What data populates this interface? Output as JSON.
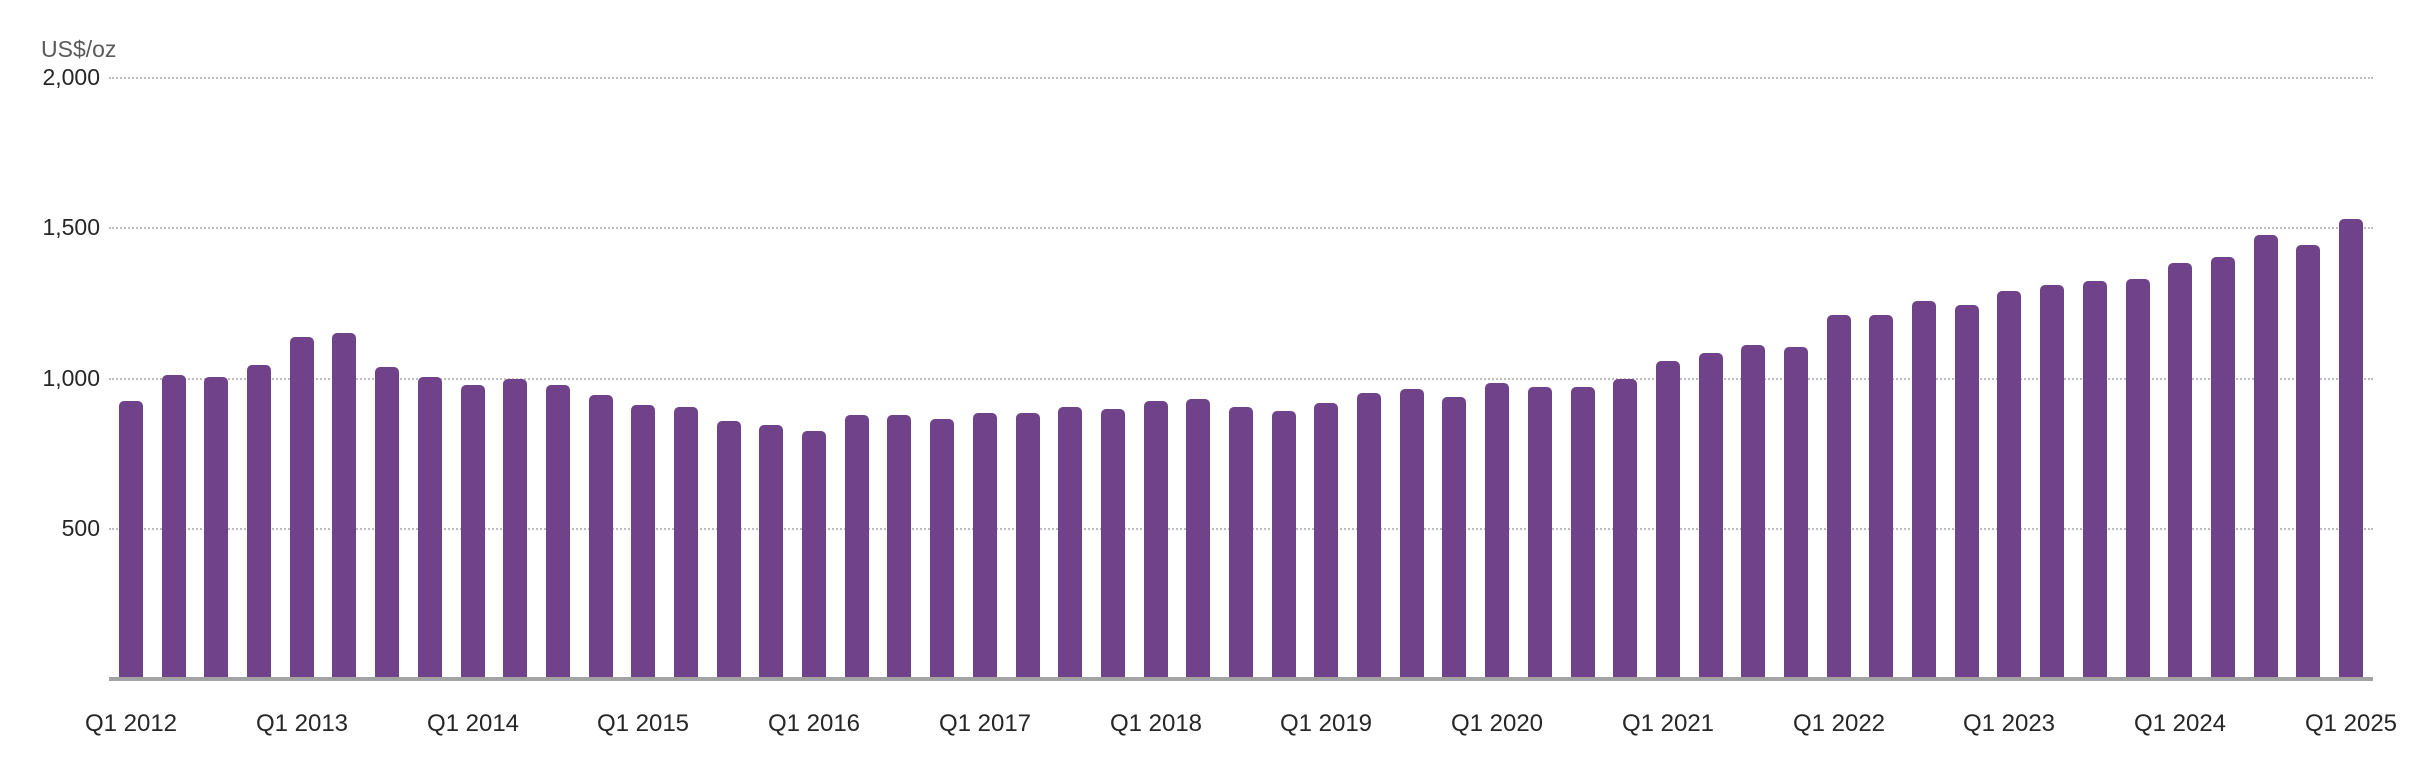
{
  "chart_data": {
    "type": "bar",
    "title": "",
    "xlabel": "",
    "ylabel": "US$/oz",
    "ylim": [
      0,
      2000
    ],
    "yticks": [
      500,
      1000,
      1500,
      2000
    ],
    "ytick_labels": [
      "500",
      "1,000",
      "1,500",
      "2,000"
    ],
    "grid": true,
    "legend": null,
    "bar_color": "#6f4289",
    "categories": [
      "Q1 2012",
      "Q2 2012",
      "Q3 2012",
      "Q4 2012",
      "Q1 2013",
      "Q2 2013",
      "Q3 2013",
      "Q4 2013",
      "Q1 2014",
      "Q2 2014",
      "Q3 2014",
      "Q4 2014",
      "Q1 2015",
      "Q2 2015",
      "Q3 2015",
      "Q4 2015",
      "Q1 2016",
      "Q2 2016",
      "Q3 2016",
      "Q4 2016",
      "Q1 2017",
      "Q2 2017",
      "Q3 2017",
      "Q4 2017",
      "Q1 2018",
      "Q2 2018",
      "Q3 2018",
      "Q4 2018",
      "Q1 2019",
      "Q2 2019",
      "Q3 2019",
      "Q4 2019",
      "Q1 2020",
      "Q2 2020",
      "Q3 2020",
      "Q4 2020",
      "Q1 2021",
      "Q2 2021",
      "Q3 2021",
      "Q4 2021",
      "Q1 2022",
      "Q2 2022",
      "Q3 2022",
      "Q4 2022",
      "Q1 2023",
      "Q2 2023",
      "Q3 2023",
      "Q4 2023",
      "Q1 2024",
      "Q2 2024",
      "Q3 2024",
      "Q4 2024",
      "Q1 2025"
    ],
    "values": [
      925,
      1012,
      1005,
      1045,
      1137,
      1151,
      1038,
      1005,
      978,
      998,
      978,
      945,
      912,
      905,
      859,
      845,
      825,
      878,
      878,
      865,
      885,
      885,
      905,
      898,
      925,
      932,
      905,
      892,
      918,
      952,
      965,
      938,
      985,
      972,
      972,
      998,
      1058,
      1085,
      1111,
      1105,
      1211,
      1211,
      1258,
      1245,
      1291,
      1311,
      1324,
      1331,
      1384,
      1404,
      1478,
      1444,
      1531
    ],
    "xtick_labels": [
      "Q1 2012",
      "Q1 2013",
      "Q1 2014",
      "Q1 2015",
      "Q1 2016",
      "Q1 2017",
      "Q1 2018",
      "Q1 2019",
      "Q1 2020",
      "Q1 2021",
      "Q1 2022",
      "Q1 2023",
      "Q1 2024",
      "Q1 2025"
    ]
  },
  "axis": {
    "unit_label": "US$/oz"
  }
}
